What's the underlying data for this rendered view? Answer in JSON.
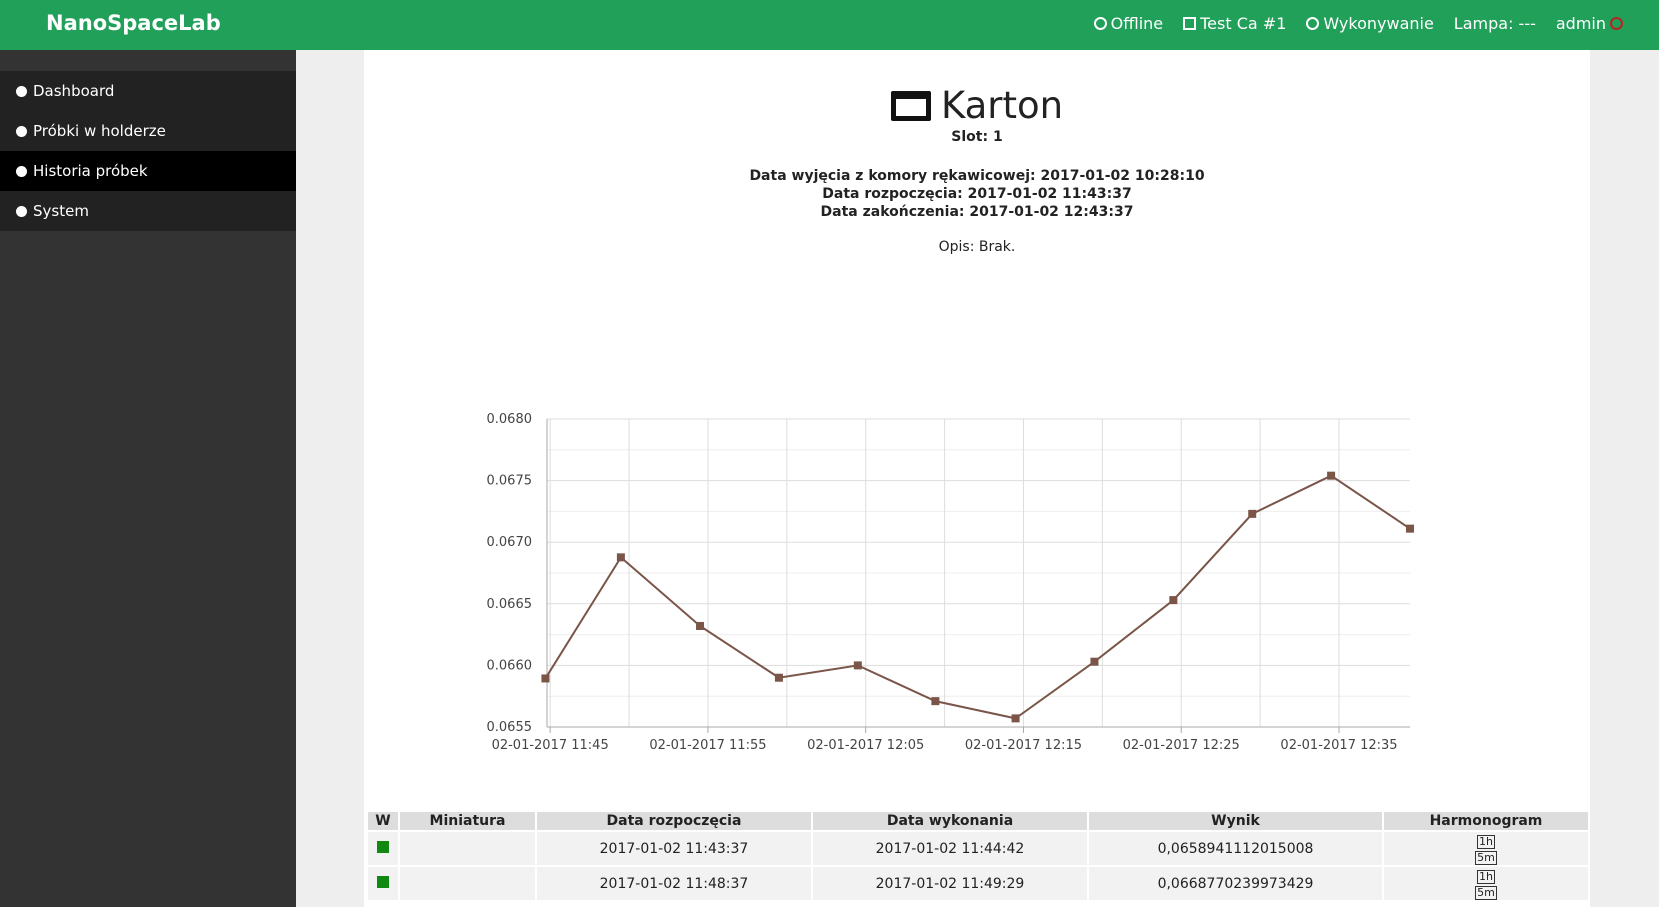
{
  "header": {
    "brand": "NanoSpaceLab",
    "nav": [
      "Offline",
      "Test Ca #1",
      "Wykonywanie",
      "Lampa: ---",
      "admin"
    ]
  },
  "sidebar": {
    "items": [
      "Dashboard",
      "Próbki w holderze",
      "Historia próbek",
      "System"
    ],
    "active": 2
  },
  "sample": {
    "name": "Karton",
    "slot": "Slot: 1",
    "dates": [
      "Data wyjęcia z komory rękawicowej: 2017-01-02 10:28:10",
      "Data rozpoczęcia: 2017-01-02 11:43:37",
      "Data zakończenia: 2017-01-02 12:43:37"
    ],
    "description": "Opis: Brak."
  },
  "chart_data": {
    "type": "line",
    "color": "#7a5548",
    "grid": true,
    "x": [
      "2017-01-02 11:44:42",
      "2017-01-02 11:49:29",
      "2017-01-02 11:54:30",
      "2017-01-02 11:59:30",
      "2017-01-02 12:04:30",
      "2017-01-02 12:09:25",
      "2017-01-02 12:14:30",
      "2017-01-02 12:19:30",
      "2017-01-02 12:24:30",
      "2017-01-02 12:29:30",
      "2017-01-02 12:34:30",
      "2017-01-02 12:39:30"
    ],
    "values": [
      0.0658941112015008,
      0.0668770239973429,
      0.06632,
      0.0659,
      0.066,
      0.06571,
      0.06557,
      0.06603,
      0.06653,
      0.06723,
      0.06754,
      0.06711
    ],
    "xlim": [
      "2017-01-02 11:44:48",
      "2017-01-02 12:39:30"
    ],
    "xticks": [
      {
        "value": "2017-01-02 11:45:00",
        "label": "02-01-2017 11:45"
      },
      {
        "value": "2017-01-02 11:55:00",
        "label": "02-01-2017 11:55"
      },
      {
        "value": "2017-01-02 12:05:00",
        "label": "02-01-2017 12:05"
      },
      {
        "value": "2017-01-02 12:15:00",
        "label": "02-01-2017 12:15"
      },
      {
        "value": "2017-01-02 12:25:00",
        "label": "02-01-2017 12:25"
      },
      {
        "value": "2017-01-02 12:35:00",
        "label": "02-01-2017 12:35"
      }
    ],
    "ylim": [
      0.0655,
      0.068
    ],
    "yticks": [
      {
        "value": 0.0655,
        "label": "0.0655"
      },
      {
        "value": 0.066,
        "label": "0.0660"
      },
      {
        "value": 0.0665,
        "label": "0.0665"
      },
      {
        "value": 0.067,
        "label": "0.0670"
      },
      {
        "value": 0.0675,
        "label": "0.0675"
      },
      {
        "value": 0.068,
        "label": "0.0680"
      }
    ]
  },
  "table": {
    "columns": [
      "W",
      "Miniatura",
      "Data rozpoczęcia",
      "Data wykonania",
      "Wynik",
      "Harmonogram"
    ],
    "rows": [
      [
        "2017-01-02 11:43:37",
        "2017-01-02 11:44:42",
        "0,0658941112015008"
      ],
      [
        "2017-01-02 11:48:37",
        "2017-01-02 11:49:29",
        "0,0668770239973429"
      ]
    ],
    "buttons": [
      "1h",
      "5m"
    ]
  }
}
